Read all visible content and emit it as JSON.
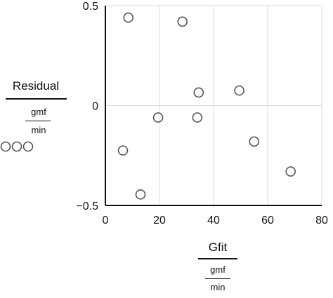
{
  "chart_data": {
    "type": "scatter",
    "title": "",
    "xlabel": {
      "main": "Gfit",
      "num": "gmf",
      "den": "min"
    },
    "ylabel": {
      "main": "Residual",
      "num": "gmf",
      "den": "min"
    },
    "xlim": [
      0,
      80
    ],
    "ylim": [
      -0.5,
      0.5
    ],
    "xticks": [
      0,
      20,
      40,
      60,
      80
    ],
    "yticks": [
      -0.5,
      0,
      0.5
    ],
    "xtick_labels": [
      "0",
      "20",
      "40",
      "60",
      "80"
    ],
    "ytick_labels": [
      "−0.5",
      "0",
      "0.5"
    ],
    "grid": true,
    "legend_glyphs": 3,
    "marker_color": "#555555",
    "grid_color": "#dddddd",
    "points": [
      {
        "x": 8.5,
        "y": 0.44
      },
      {
        "x": 28.5,
        "y": 0.42
      },
      {
        "x": 34.5,
        "y": 0.065
      },
      {
        "x": 49.5,
        "y": 0.075
      },
      {
        "x": 19.5,
        "y": -0.06
      },
      {
        "x": 34.0,
        "y": -0.06
      },
      {
        "x": 6.5,
        "y": -0.225
      },
      {
        "x": 55.0,
        "y": -0.18
      },
      {
        "x": 13.0,
        "y": -0.445
      },
      {
        "x": 68.5,
        "y": -0.33
      }
    ]
  }
}
